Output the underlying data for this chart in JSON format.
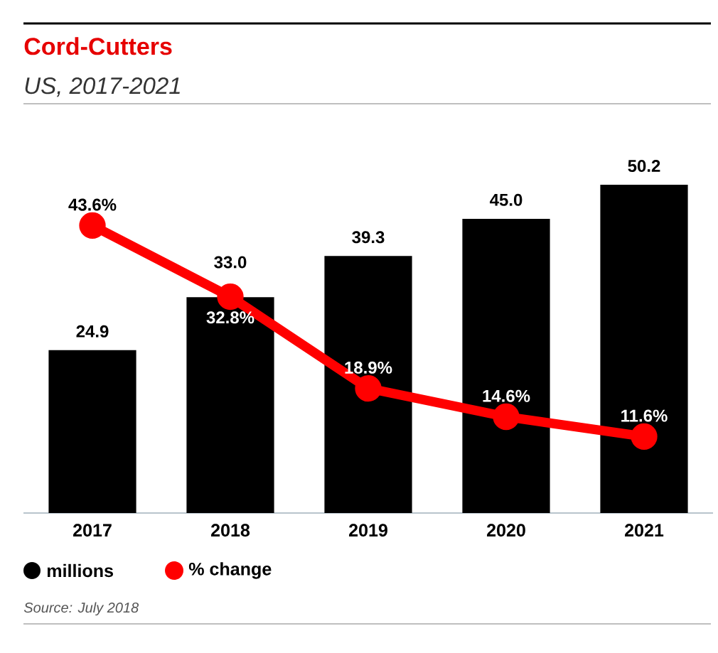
{
  "chart_data": {
    "type": "bar",
    "title": "Cord-Cutters",
    "subtitle": "US, 2017-2021",
    "categories": [
      "2017",
      "2018",
      "2019",
      "2020",
      "2021"
    ],
    "series": [
      {
        "name": "millions",
        "color": "#000000",
        "values": [
          24.9,
          33.0,
          39.3,
          45.0,
          50.2
        ],
        "value_labels": [
          "24.9",
          "33.0",
          "39.3",
          "45.0",
          "50.2"
        ]
      },
      {
        "name": "% change",
        "type": "line",
        "axis": "y2",
        "color": "#ff0000",
        "marker": "circle",
        "values": [
          43.6,
          32.8,
          18.9,
          14.6,
          11.6
        ],
        "value_labels": [
          "43.6%",
          "32.8%",
          "18.9%",
          "14.6%",
          "11.6%"
        ]
      }
    ],
    "tick_labels": "x",
    "legend": "bottom left",
    "annotations": [
      "Source: July 2018"
    ]
  }
}
